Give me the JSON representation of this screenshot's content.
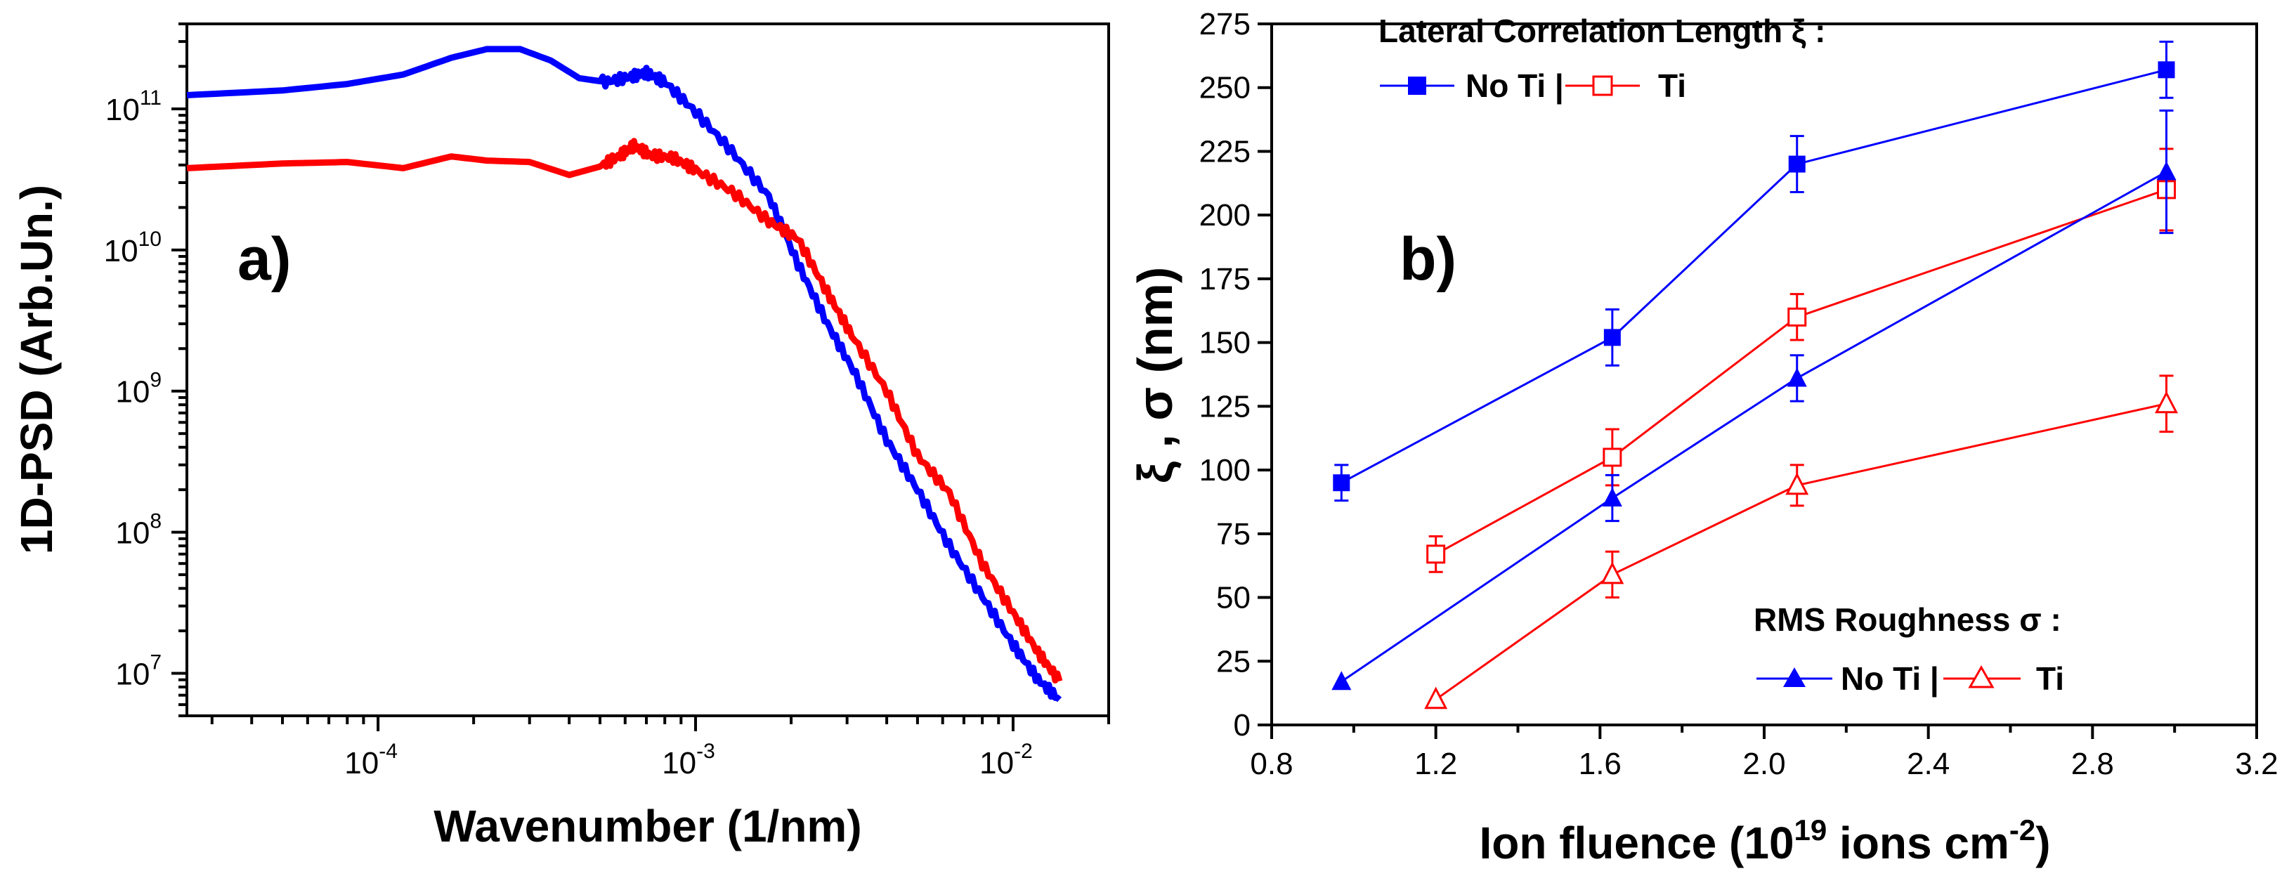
{
  "chart_data": [
    {
      "panel_label": "a)",
      "type": "line",
      "xscale": "log",
      "yscale": "log",
      "xlabel": "Wavenumber (1/nm)",
      "ylabel": "1D-PSD (Arb.Un.)",
      "xlim": [
        2.5e-05,
        0.02
      ],
      "ylim": [
        5000000.0,
        400000000000.0
      ],
      "x_ticks": [
        {
          "value": 0.0001,
          "base": "10",
          "exp": "-4"
        },
        {
          "value": 0.001,
          "base": "10",
          "exp": "-3"
        },
        {
          "value": 0.01,
          "base": "10",
          "exp": "-2"
        }
      ],
      "y_ticks": [
        {
          "value": 10000000.0,
          "base": "10",
          "exp": "7"
        },
        {
          "value": 100000000.0,
          "base": "10",
          "exp": "8"
        },
        {
          "value": 1000000000.0,
          "base": "10",
          "exp": "9"
        },
        {
          "value": 10000000000.0,
          "base": "10",
          "exp": "10"
        },
        {
          "value": 100000000000.0,
          "base": "10",
          "exp": "11"
        }
      ],
      "series": [
        {
          "name": "blue",
          "color": "#0000ff",
          "x": [
            2.5e-05,
            5e-05,
            8e-05,
            0.00012,
            0.00017,
            0.00022,
            0.00028,
            0.00035,
            0.00043,
            0.00052,
            0.00062,
            0.0007,
            0.0008,
            0.001,
            0.0013,
            0.0017,
            0.0021,
            0.0026,
            0.0032,
            0.004,
            0.005,
            0.0063,
            0.008,
            0.01,
            0.012,
            0.014
          ],
          "y": [
            125000000000.0,
            135000000000.0,
            150000000000.0,
            175000000000.0,
            230000000000.0,
            265000000000.0,
            265000000000.0,
            220000000000.0,
            165000000000.0,
            155000000000.0,
            168000000000.0,
            180000000000.0,
            155000000000.0,
            95000000000.0,
            50000000000.0,
            24000000000.0,
            8000000000.0,
            3000000000.0,
            1300000000.0,
            450000000.0,
            200000000.0,
            80000000.0,
            35000000.0,
            16000000.0,
            9000000.0,
            6500000.0
          ]
        },
        {
          "name": "red",
          "color": "#ff0000",
          "x": [
            2.5e-05,
            5e-05,
            8e-05,
            0.00012,
            0.00017,
            0.00022,
            0.0003,
            0.0004,
            0.0005,
            0.00058,
            0.00064,
            0.00072,
            0.00085,
            0.001,
            0.0013,
            0.0017,
            0.0021,
            0.0026,
            0.0031,
            0.004,
            0.005,
            0.0063,
            0.008,
            0.01,
            0.012,
            0.014
          ],
          "y": [
            38000000000.0,
            41000000000.0,
            42000000000.0,
            38000000000.0,
            46000000000.0,
            43000000000.0,
            42000000000.0,
            34000000000.0,
            39000000000.0,
            47000000000.0,
            55000000000.0,
            47000000000.0,
            45000000000.0,
            37000000000.0,
            26000000000.0,
            16000000000.0,
            12000000000.0,
            5000000000.0,
            2500000000.0,
            1000000000.0,
            350000000.0,
            190000000.0,
            60000000.0,
            27000000.0,
            14000000.0,
            8800000.0
          ]
        }
      ]
    },
    {
      "panel_label": "b)",
      "type": "line",
      "xlabel_prefix": "Ion fluence (10",
      "xlabel_sup1": "19",
      "xlabel_mid": " ions cm",
      "xlabel_sup2": "-2",
      "xlabel_suffix": ")",
      "ylabel": "ξ , σ  (nm)",
      "xlim": [
        0.8,
        3.2
      ],
      "ylim": [
        0,
        275
      ],
      "x_ticks": [
        "0.8",
        "1.2",
        "1.6",
        "2.0",
        "2.4",
        "2.8",
        "3.2"
      ],
      "y_ticks": [
        "0",
        "25",
        "50",
        "75",
        "100",
        "125",
        "150",
        "175",
        "200",
        "225",
        "250",
        "275"
      ],
      "legend_top": {
        "title": "Lateral Correlation Length ξ :",
        "entry1": "No Ti |",
        "entry2": "Ti"
      },
      "legend_bottom": {
        "title": "RMS Roughness σ :",
        "entry1": "No Ti |",
        "entry2": "Ti"
      },
      "series": [
        {
          "name": "ξ No Ti",
          "color": "#0000ff",
          "marker": "filled-square",
          "x": [
            0.97,
            1.63,
            2.08,
            2.98
          ],
          "y": [
            95,
            152,
            220,
            257
          ],
          "err": [
            7,
            11,
            11,
            11
          ]
        },
        {
          "name": "ξ Ti",
          "color": "#ff0000",
          "marker": "open-square",
          "x": [
            1.2,
            1.63,
            2.08,
            2.98
          ],
          "y": [
            67,
            105,
            160,
            210
          ],
          "err": [
            7,
            11,
            9,
            16
          ]
        },
        {
          "name": "σ No Ti",
          "color": "#0000ff",
          "marker": "filled-triangle",
          "x": [
            0.97,
            1.63,
            2.08,
            2.98
          ],
          "y": [
            17,
            89,
            136,
            217
          ],
          "err": [
            0,
            9,
            9,
            24
          ]
        },
        {
          "name": "σ Ti",
          "color": "#ff0000",
          "marker": "open-triangle",
          "x": [
            1.2,
            1.63,
            2.08,
            2.98
          ],
          "y": [
            10,
            59,
            94,
            126
          ],
          "err": [
            0,
            9,
            8,
            11
          ]
        }
      ]
    }
  ]
}
